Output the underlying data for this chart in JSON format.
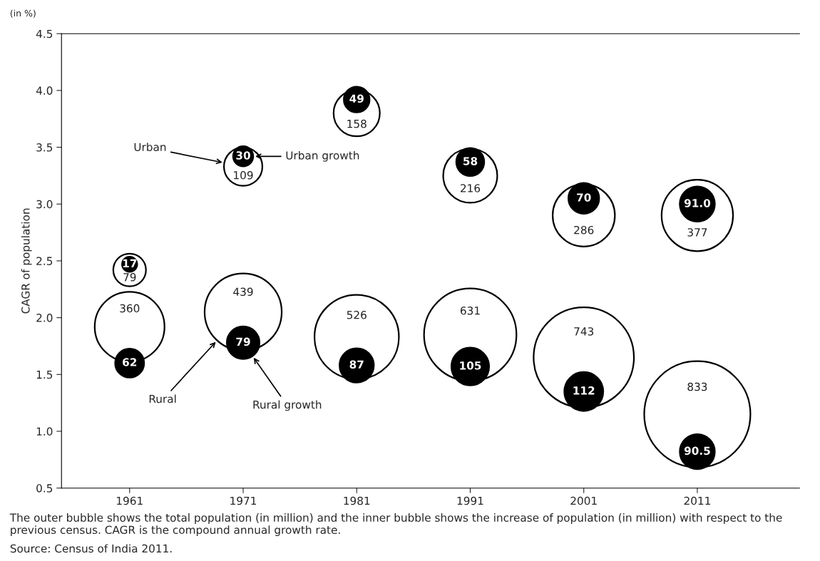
{
  "chart_data": {
    "type": "bubble",
    "ylabel": "CAGR of population",
    "categories": [
      "1961",
      "1971",
      "1981",
      "1991",
      "2001",
      "2011"
    ],
    "ylim": [
      0.5,
      4.5
    ],
    "yticks": [
      {
        "value": 0.5,
        "label": "0.5"
      },
      {
        "value": 1.0,
        "label": "1.0"
      },
      {
        "value": 1.5,
        "label": "1.5"
      },
      {
        "value": 2.0,
        "label": "2.0"
      },
      {
        "value": 2.5,
        "label": "2.5"
      },
      {
        "value": 3.0,
        "label": "3.0"
      },
      {
        "value": 3.5,
        "label": "3.5"
      },
      {
        "value": 4.0,
        "label": "4.0"
      },
      {
        "value": 4.5,
        "label": "4.5"
      }
    ],
    "series": [
      {
        "name": "Urban",
        "color": "#ffffff",
        "values": [
          2.42,
          3.33,
          3.8,
          3.25,
          2.9,
          2.9
        ],
        "sizes": [
          79,
          109,
          158,
          216,
          286,
          377
        ],
        "value_labels": [
          "79",
          "109",
          "158",
          "216",
          "286",
          "377"
        ]
      },
      {
        "name": "Urban growth",
        "color": "#000000",
        "values": [
          2.47,
          3.42,
          3.92,
          3.37,
          3.05,
          3.0
        ],
        "sizes": [
          17,
          30,
          49,
          58,
          70,
          91.0
        ],
        "value_labels": [
          "17",
          "30",
          "49",
          "58",
          "70",
          "91.0"
        ]
      },
      {
        "name": "Rural",
        "color": "#ffffff",
        "values": [
          1.92,
          2.05,
          1.83,
          1.85,
          1.65,
          1.15
        ],
        "sizes": [
          360,
          439,
          526,
          631,
          743,
          833
        ],
        "value_labels": [
          "360",
          "439",
          "526",
          "631",
          "743",
          "833"
        ]
      },
      {
        "name": "Rural growth",
        "color": "#000000",
        "values": [
          1.6,
          1.78,
          1.58,
          1.57,
          1.35,
          0.82
        ],
        "sizes": [
          62,
          79,
          87,
          105,
          112,
          90.5
        ],
        "value_labels": [
          "62",
          "79",
          "87",
          "105",
          "112",
          "90.5"
        ]
      }
    ],
    "annotations": [
      "(in %)",
      "The outer bubble shows the total population (in million) and the inner bubble shows the increase of population (in million) with respect to the previous census. CAGR is the compound annual growth rate.",
      "Source: Census of India 2011."
    ],
    "grid": false
  }
}
